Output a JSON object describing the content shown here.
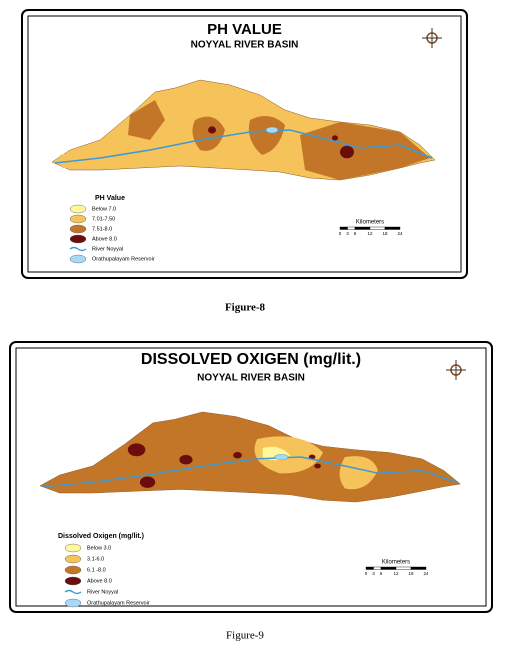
{
  "figures": [
    {
      "title": "PH VALUE",
      "subtitle": "NOYYAL RIVER BASIN",
      "legend_title": "PH Value",
      "legend": [
        {
          "label": "Below 7.0",
          "color": "#fff799"
        },
        {
          "label": "7.01-7.50",
          "color": "#f5c35a"
        },
        {
          "label": "7.51-8.0",
          "color": "#c47628"
        },
        {
          "label": "Above 8.0",
          "color": "#6b0d0d"
        },
        {
          "label": "River Noyyal",
          "color": "#3d9ad6"
        },
        {
          "label": "Orathupalayam Reservoir",
          "color": "#a6d8f7"
        }
      ],
      "scale_title": "Kilometers",
      "scale_ticks": [
        0,
        3,
        6,
        12,
        18,
        24
      ],
      "caption": "Figure-8"
    },
    {
      "title": "DISSOLVED OXIGEN (mg/lit.)",
      "subtitle": "NOYYAL RIVER BASIN",
      "legend_title": "Dissolved Oxigen (mg/lit.)",
      "legend": [
        {
          "label": "Below 3.0",
          "color": "#fff799"
        },
        {
          "label": "3.1-6.0",
          "color": "#f5c35a"
        },
        {
          "label": "6.1 -8.0",
          "color": "#c47628"
        },
        {
          "label": "Above 8.0",
          "color": "#6b0d0d"
        },
        {
          "label": "River Noyyal",
          "color": "#3d9ad6"
        },
        {
          "label": "Orathupalayam Reservoir",
          "color": "#a6d8f7"
        }
      ],
      "scale_title": "Kilometers",
      "scale_ticks": [
        0,
        3,
        6,
        12,
        18,
        24
      ],
      "caption": "Figure-9"
    }
  ]
}
